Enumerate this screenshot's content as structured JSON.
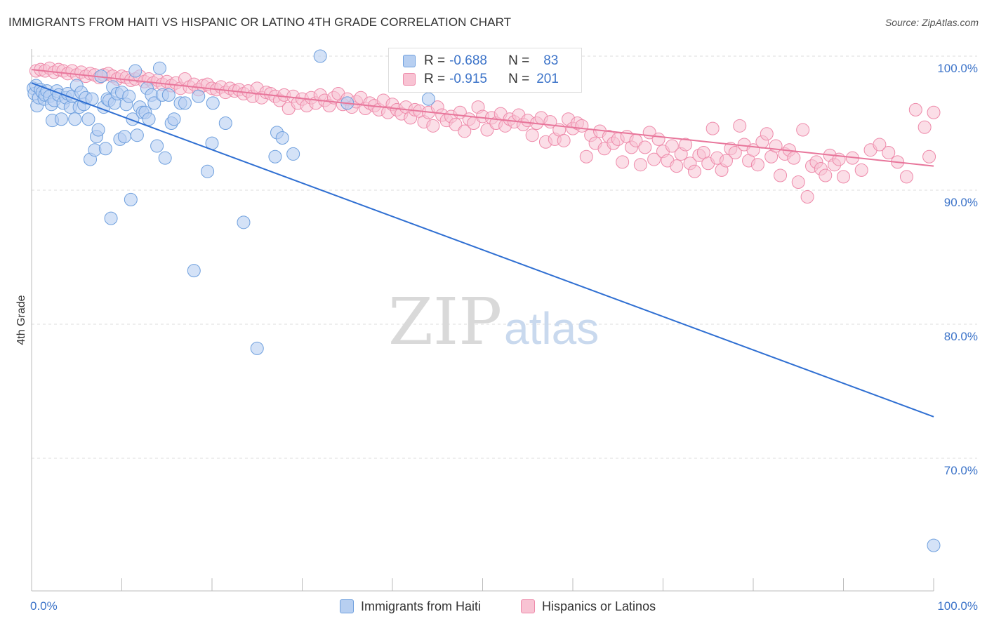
{
  "header": {
    "title": "IMMIGRANTS FROM HAITI VS HISPANIC OR LATINO 4TH GRADE CORRELATION CHART",
    "source": "Source: ZipAtlas.com"
  },
  "legend": {
    "series1": {
      "r_label": "R =",
      "r_value": "-0.688",
      "n_label": "N =",
      "n_value": "83"
    },
    "series2": {
      "r_label": "R =",
      "r_value": "-0.915",
      "n_label": "N =",
      "n_value": "201"
    }
  },
  "bottom_legend": {
    "series1": "Immigrants from Haiti",
    "series2": "Hispanics or Latinos"
  },
  "watermark": {
    "zip": "ZIP",
    "atlas": "atlas"
  },
  "colors": {
    "blue": "#6fa0de",
    "blue_fill": "#b7cff1",
    "blue_line": "#2f6fd2",
    "pink": "#ee8aaa",
    "pink_fill": "#f8c3d3",
    "pink_line": "#e8769b",
    "tick_text": "#3d74c9"
  },
  "chart_data": {
    "type": "scatter",
    "title": "IMMIGRANTS FROM HAITI VS HISPANIC OR LATINO 4TH GRADE CORRELATION CHART",
    "xlabel": "",
    "ylabel": "4th Grade",
    "xlim": [
      0,
      100
    ],
    "ylim": [
      62,
      100
    ],
    "x_tick_labels": [
      "0.0%",
      "100.0%"
    ],
    "y_ticks": [
      70,
      80,
      90,
      100
    ],
    "y_tick_labels": [
      "70.0%",
      "80.0%",
      "90.0%",
      "100.0%"
    ],
    "grid": true,
    "legend_position": "top-center",
    "series": [
      {
        "name": "Immigrants from Haiti",
        "trend": {
          "x": [
            0,
            100
          ],
          "y": [
            98.0,
            73.1
          ]
        },
        "points": [
          [
            0.2,
            97.6
          ],
          [
            0.3,
            97.2
          ],
          [
            0.5,
            97.8
          ],
          [
            0.6,
            96.3
          ],
          [
            0.8,
            96.9
          ],
          [
            1.0,
            97.5
          ],
          [
            1.2,
            97.3
          ],
          [
            1.4,
            96.8
          ],
          [
            1.5,
            97.1
          ],
          [
            1.7,
            97.4
          ],
          [
            2.0,
            97.0
          ],
          [
            2.2,
            96.4
          ],
          [
            2.3,
            95.2
          ],
          [
            2.5,
            96.7
          ],
          [
            2.8,
            97.4
          ],
          [
            3.0,
            97.1
          ],
          [
            3.3,
            95.3
          ],
          [
            3.5,
            96.5
          ],
          [
            3.8,
            96.9
          ],
          [
            4.0,
            97.2
          ],
          [
            4.3,
            96.2
          ],
          [
            4.5,
            97.0
          ],
          [
            4.8,
            95.3
          ],
          [
            5.0,
            97.8
          ],
          [
            5.3,
            96.2
          ],
          [
            5.5,
            97.3
          ],
          [
            5.8,
            96.4
          ],
          [
            6.0,
            96.9
          ],
          [
            6.3,
            95.3
          ],
          [
            6.5,
            92.3
          ],
          [
            6.7,
            96.8
          ],
          [
            7.0,
            93.0
          ],
          [
            7.2,
            94.0
          ],
          [
            7.4,
            94.5
          ],
          [
            7.7,
            98.5
          ],
          [
            8.0,
            96.2
          ],
          [
            8.2,
            93.1
          ],
          [
            8.4,
            96.8
          ],
          [
            8.6,
            96.7
          ],
          [
            8.8,
            87.9
          ],
          [
            9.0,
            97.7
          ],
          [
            9.2,
            96.5
          ],
          [
            9.5,
            97.2
          ],
          [
            9.8,
            93.8
          ],
          [
            10.0,
            97.3
          ],
          [
            10.3,
            94.0
          ],
          [
            10.5,
            96.4
          ],
          [
            10.8,
            97.0
          ],
          [
            11.0,
            89.3
          ],
          [
            11.2,
            95.3
          ],
          [
            11.5,
            98.9
          ],
          [
            11.7,
            94.1
          ],
          [
            12.0,
            96.2
          ],
          [
            12.3,
            95.8
          ],
          [
            12.6,
            95.8
          ],
          [
            12.8,
            97.6
          ],
          [
            13.0,
            95.3
          ],
          [
            13.3,
            97.1
          ],
          [
            13.6,
            96.5
          ],
          [
            13.9,
            93.3
          ],
          [
            14.2,
            99.1
          ],
          [
            14.5,
            97.1
          ],
          [
            14.8,
            92.4
          ],
          [
            15.2,
            97.1
          ],
          [
            15.5,
            95.0
          ],
          [
            15.8,
            95.3
          ],
          [
            16.5,
            96.5
          ],
          [
            17.0,
            96.5
          ],
          [
            18.0,
            84.0
          ],
          [
            18.5,
            97.0
          ],
          [
            19.5,
            91.4
          ],
          [
            20.0,
            93.5
          ],
          [
            20.1,
            96.5
          ],
          [
            21.5,
            95.0
          ],
          [
            23.5,
            87.6
          ],
          [
            25.0,
            78.2
          ],
          [
            27.0,
            92.5
          ],
          [
            27.2,
            94.3
          ],
          [
            27.8,
            93.9
          ],
          [
            29.0,
            92.7
          ],
          [
            32.0,
            100.0
          ],
          [
            35.0,
            96.5
          ],
          [
            44.0,
            96.8
          ],
          [
            100.0,
            63.5
          ]
        ]
      },
      {
        "name": "Hispanics or Latinos",
        "trend": {
          "x": [
            0,
            100
          ],
          "y": [
            99.0,
            91.8
          ]
        },
        "points": [
          [
            0.5,
            98.9
          ],
          [
            1.0,
            99.0
          ],
          [
            1.5,
            98.9
          ],
          [
            2.0,
            99.1
          ],
          [
            2.5,
            98.8
          ],
          [
            3.0,
            99.0
          ],
          [
            3.5,
            98.9
          ],
          [
            4.0,
            98.7
          ],
          [
            4.5,
            98.9
          ],
          [
            5.0,
            98.6
          ],
          [
            5.5,
            98.8
          ],
          [
            6.0,
            98.5
          ],
          [
            6.5,
            98.7
          ],
          [
            7.0,
            98.6
          ],
          [
            7.5,
            98.4
          ],
          [
            8.0,
            98.6
          ],
          [
            8.5,
            98.7
          ],
          [
            9.0,
            98.5
          ],
          [
            9.5,
            98.3
          ],
          [
            10.0,
            98.5
          ],
          [
            10.5,
            98.4
          ],
          [
            11.0,
            98.2
          ],
          [
            11.5,
            98.3
          ],
          [
            12.0,
            98.5
          ],
          [
            12.5,
            98.1
          ],
          [
            13.0,
            98.3
          ],
          [
            13.5,
            98.0
          ],
          [
            14.0,
            98.2
          ],
          [
            14.5,
            97.9
          ],
          [
            15.0,
            98.1
          ],
          [
            15.5,
            97.8
          ],
          [
            16.0,
            98.0
          ],
          [
            16.5,
            97.6
          ],
          [
            17.0,
            98.3
          ],
          [
            17.5,
            97.7
          ],
          [
            18.0,
            97.9
          ],
          [
            18.5,
            97.5
          ],
          [
            19.0,
            97.8
          ],
          [
            19.5,
            97.9
          ],
          [
            20.0,
            97.6
          ],
          [
            20.5,
            97.5
          ],
          [
            21.0,
            97.7
          ],
          [
            21.5,
            97.3
          ],
          [
            22.0,
            97.6
          ],
          [
            22.5,
            97.4
          ],
          [
            23.0,
            97.5
          ],
          [
            23.5,
            97.2
          ],
          [
            24.0,
            97.4
          ],
          [
            24.5,
            97.0
          ],
          [
            25.0,
            97.6
          ],
          [
            25.5,
            96.9
          ],
          [
            26.0,
            97.3
          ],
          [
            26.5,
            97.2
          ],
          [
            27.0,
            97.0
          ],
          [
            27.5,
            96.7
          ],
          [
            28.0,
            97.1
          ],
          [
            28.5,
            96.1
          ],
          [
            29.0,
            97.0
          ],
          [
            29.5,
            96.5
          ],
          [
            30.0,
            96.8
          ],
          [
            30.5,
            96.3
          ],
          [
            31.0,
            96.9
          ],
          [
            31.5,
            96.5
          ],
          [
            32.0,
            97.1
          ],
          [
            32.5,
            96.7
          ],
          [
            33.0,
            96.3
          ],
          [
            33.5,
            96.9
          ],
          [
            34.0,
            97.2
          ],
          [
            34.5,
            96.4
          ],
          [
            35.0,
            96.8
          ],
          [
            35.5,
            96.2
          ],
          [
            36.0,
            96.6
          ],
          [
            36.5,
            96.9
          ],
          [
            37.0,
            96.1
          ],
          [
            37.5,
            96.5
          ],
          [
            38.0,
            96.3
          ],
          [
            38.5,
            96.0
          ],
          [
            39.0,
            96.7
          ],
          [
            39.5,
            95.8
          ],
          [
            40.0,
            96.4
          ],
          [
            40.5,
            96.0
          ],
          [
            41.0,
            95.7
          ],
          [
            41.5,
            96.2
          ],
          [
            42.0,
            95.4
          ],
          [
            42.5,
            96.0
          ],
          [
            43.0,
            95.9
          ],
          [
            43.5,
            95.1
          ],
          [
            44.0,
            95.8
          ],
          [
            44.5,
            94.8
          ],
          [
            45.0,
            96.2
          ],
          [
            45.5,
            95.6
          ],
          [
            46.0,
            95.2
          ],
          [
            46.5,
            95.5
          ],
          [
            47.0,
            94.9
          ],
          [
            47.5,
            95.8
          ],
          [
            48.0,
            94.4
          ],
          [
            48.5,
            95.3
          ],
          [
            49.0,
            95.0
          ],
          [
            49.5,
            96.2
          ],
          [
            50.0,
            95.5
          ],
          [
            50.5,
            94.5
          ],
          [
            51.0,
            95.4
          ],
          [
            51.5,
            95.0
          ],
          [
            52.0,
            95.7
          ],
          [
            52.5,
            94.8
          ],
          [
            53.0,
            95.3
          ],
          [
            53.5,
            95.1
          ],
          [
            54.0,
            95.6
          ],
          [
            54.5,
            94.9
          ],
          [
            55.0,
            95.2
          ],
          [
            55.5,
            94.1
          ],
          [
            56.0,
            95.0
          ],
          [
            56.5,
            95.4
          ],
          [
            57.0,
            93.6
          ],
          [
            57.5,
            95.1
          ],
          [
            58.0,
            93.8
          ],
          [
            58.5,
            94.5
          ],
          [
            59.0,
            93.7
          ],
          [
            59.5,
            95.3
          ],
          [
            60.0,
            94.6
          ],
          [
            60.5,
            95.0
          ],
          [
            61.0,
            94.8
          ],
          [
            61.5,
            92.5
          ],
          [
            62.0,
            94.1
          ],
          [
            62.5,
            93.5
          ],
          [
            63.0,
            94.4
          ],
          [
            63.5,
            93.1
          ],
          [
            64.0,
            94.0
          ],
          [
            64.5,
            93.5
          ],
          [
            65.0,
            93.8
          ],
          [
            65.5,
            92.1
          ],
          [
            66.0,
            94.0
          ],
          [
            66.5,
            93.2
          ],
          [
            67.0,
            93.7
          ],
          [
            67.5,
            91.9
          ],
          [
            68.0,
            93.2
          ],
          [
            68.5,
            94.3
          ],
          [
            69.0,
            92.3
          ],
          [
            69.5,
            93.8
          ],
          [
            70.0,
            92.9
          ],
          [
            70.5,
            92.2
          ],
          [
            71.0,
            93.3
          ],
          [
            71.5,
            91.8
          ],
          [
            72.0,
            92.7
          ],
          [
            72.5,
            93.4
          ],
          [
            73.0,
            92.0
          ],
          [
            73.5,
            91.4
          ],
          [
            74.0,
            92.6
          ],
          [
            74.5,
            92.8
          ],
          [
            75.0,
            92.0
          ],
          [
            75.5,
            94.6
          ],
          [
            76.0,
            92.4
          ],
          [
            76.5,
            91.5
          ],
          [
            77.0,
            92.2
          ],
          [
            77.5,
            93.1
          ],
          [
            78.0,
            92.8
          ],
          [
            78.5,
            94.8
          ],
          [
            79.0,
            93.4
          ],
          [
            79.5,
            92.2
          ],
          [
            80.0,
            93.0
          ],
          [
            80.5,
            91.9
          ],
          [
            81.0,
            93.6
          ],
          [
            81.5,
            94.2
          ],
          [
            82.0,
            92.5
          ],
          [
            82.5,
            93.3
          ],
          [
            83.0,
            91.1
          ],
          [
            83.5,
            92.7
          ],
          [
            84.0,
            93.0
          ],
          [
            84.5,
            92.4
          ],
          [
            85.0,
            90.6
          ],
          [
            85.5,
            94.5
          ],
          [
            86.0,
            89.5
          ],
          [
            86.5,
            91.8
          ],
          [
            87.0,
            92.1
          ],
          [
            87.5,
            91.6
          ],
          [
            88.0,
            91.1
          ],
          [
            88.5,
            92.6
          ],
          [
            89.0,
            91.9
          ],
          [
            89.5,
            92.3
          ],
          [
            90.0,
            91.0
          ],
          [
            91.0,
            92.4
          ],
          [
            92.0,
            91.5
          ],
          [
            93.0,
            93.0
          ],
          [
            94.0,
            93.4
          ],
          [
            95.0,
            92.8
          ],
          [
            96.0,
            92.1
          ],
          [
            97.0,
            91.0
          ],
          [
            98.0,
            96.0
          ],
          [
            99.0,
            94.7
          ],
          [
            99.5,
            92.5
          ],
          [
            100.0,
            95.8
          ]
        ]
      }
    ]
  }
}
